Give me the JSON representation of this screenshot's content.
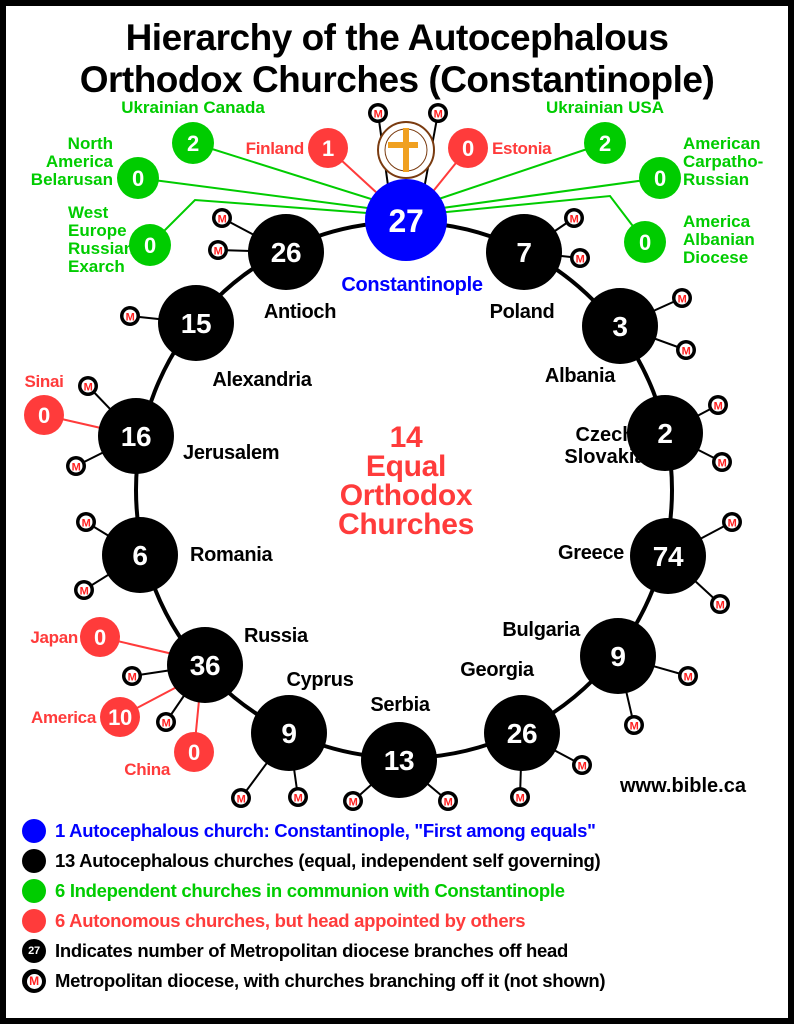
{
  "title": {
    "line1": "Hierarchy of the Autocephalous",
    "line2": "Orthodox Churches (Constantinople)"
  },
  "colors": {
    "first": "#0000ff",
    "autocephalous": "#000000",
    "independent": "#00cc00",
    "autonomous": "#ff3b3b",
    "metropolitan_m": "#ff2020"
  },
  "center_text": [
    "14",
    "Equal",
    "Orthodox",
    "Churches"
  ],
  "website": "www.bible.ca",
  "head": {
    "name": "Constantinople",
    "count": "27",
    "type": "first"
  },
  "autocephalous": [
    {
      "name": "Antioch",
      "count": "26"
    },
    {
      "name": "Poland",
      "count": "7"
    },
    {
      "name": "Alexandria",
      "count": "15"
    },
    {
      "name": "Albania",
      "count": "3"
    },
    {
      "name": "Jerusalem",
      "count": "16"
    },
    {
      "name": "Czech Slovakia",
      "count": "2"
    },
    {
      "name": "Romania",
      "count": "6"
    },
    {
      "name": "Greece",
      "count": "74"
    },
    {
      "name": "Russia",
      "count": "36"
    },
    {
      "name": "Bulgaria",
      "count": "9"
    },
    {
      "name": "Cyprus",
      "count": "9"
    },
    {
      "name": "Georgia",
      "count": "26"
    },
    {
      "name": "Serbia",
      "count": "13"
    }
  ],
  "independent": [
    {
      "name": "Ukrainian Canada",
      "count": "2",
      "parent": "Constantinople"
    },
    {
      "name": "North America Belarusan",
      "count": "0",
      "parent": "Constantinople"
    },
    {
      "name": "West Europe Russian Exarch",
      "count": "0",
      "parent": "Constantinople"
    },
    {
      "name": "Ukrainian USA",
      "count": "2",
      "parent": "Constantinople"
    },
    {
      "name": "American Carpatho-Russian",
      "count": "0",
      "parent": "Constantinople"
    },
    {
      "name": "America Albanian Diocese",
      "count": "0",
      "parent": "Constantinople"
    }
  ],
  "autonomous": [
    {
      "name": "Finland",
      "count": "1",
      "parent": "Constantinople"
    },
    {
      "name": "Estonia",
      "count": "0",
      "parent": "Constantinople"
    },
    {
      "name": "Sinai",
      "count": "0",
      "parent": "Jerusalem"
    },
    {
      "name": "Japan",
      "count": "0",
      "parent": "Russia"
    },
    {
      "name": "America",
      "count": "10",
      "parent": "Russia"
    },
    {
      "name": "China",
      "count": "0",
      "parent": "Russia"
    }
  ],
  "metropolitan_symbol": "M",
  "legend": [
    {
      "type": "first",
      "text": "1 Autocephalous church: Constantinople, \"First among equals\""
    },
    {
      "type": "autocephalous",
      "text": "13 Autocephalous churches (equal, independent self governing)"
    },
    {
      "type": "independent",
      "text": "6 Independent churches in communion with Constantinople"
    },
    {
      "type": "autonomous",
      "text": "6 Autonomous churches, but head appointed by others"
    },
    {
      "type": "count",
      "symbol": "27",
      "text": "Indicates number of Metropolitan diocese branches off head"
    },
    {
      "type": "metro",
      "symbol": "M",
      "text": "Metropolitan diocese, with churches branching off it (not shown)"
    }
  ]
}
